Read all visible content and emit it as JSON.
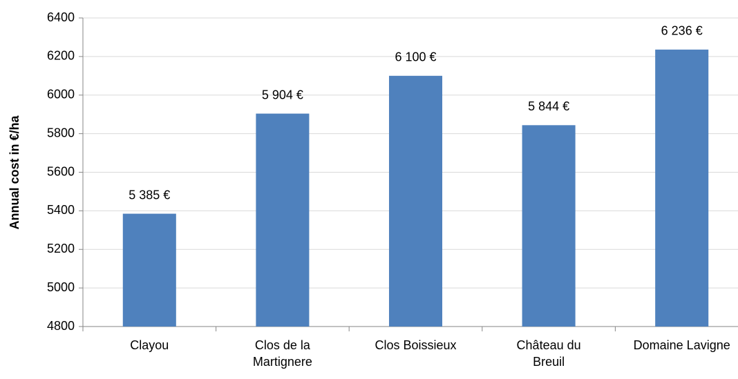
{
  "chart_data": {
    "type": "bar",
    "y_label": "Annual cost in €/ha",
    "categories": [
      "Clayou",
      "Clos de la Martignere",
      "Clos Boissieux",
      "Château du Breuil",
      "Domaine Lavigne"
    ],
    "values": [
      5385,
      5904,
      6100,
      5844,
      6236
    ],
    "value_labels": [
      "5 385 €",
      "5 904 €",
      "6 100 €",
      "5 844 €",
      "6 236 €"
    ],
    "color": "#4f81bd",
    "ylim": [
      4800,
      6400
    ],
    "yticks": [
      4800,
      5000,
      5200,
      5400,
      5600,
      5800,
      6000,
      6200,
      6400
    ],
    "grid": true
  }
}
